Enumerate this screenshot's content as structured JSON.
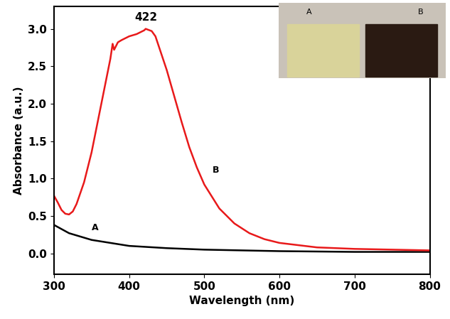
{
  "chart_data": {
    "type": "line",
    "x_label": "Wavelength (nm)",
    "y_label": "Absorbance (a.u.)",
    "xlim": [
      300,
      800
    ],
    "xticks": [
      300,
      400,
      500,
      600,
      700,
      800
    ],
    "ylim": [
      -0.28,
      3.3
    ],
    "yticks": [
      {
        "value": 0,
        "label": "0.0"
      },
      0.5,
      {
        "value": 1,
        "label": "1.0"
      },
      1.5,
      {
        "value": 2,
        "label": "2.0"
      },
      2.5,
      {
        "value": 3,
        "label": "3.0"
      }
    ],
    "grid": false,
    "series": [
      {
        "name": "A",
        "color": "#000000",
        "x": [
          300,
          320,
          350,
          400,
          450,
          500,
          600,
          700,
          800
        ],
        "values": [
          0.38,
          0.27,
          0.18,
          0.1,
          0.07,
          0.05,
          0.03,
          0.02,
          0.02
        ]
      },
      {
        "name": "B",
        "color": "#e8191a",
        "x": [
          300,
          305,
          310,
          315,
          320,
          325,
          330,
          340,
          350,
          360,
          370,
          375,
          378,
          380,
          385,
          390,
          400,
          410,
          420,
          422,
          430,
          435,
          440,
          450,
          460,
          470,
          480,
          490,
          500,
          520,
          540,
          560,
          580,
          600,
          650,
          700,
          750,
          800
        ],
        "values": [
          0.77,
          0.68,
          0.58,
          0.53,
          0.52,
          0.56,
          0.66,
          0.95,
          1.35,
          1.85,
          2.35,
          2.6,
          2.8,
          2.72,
          2.82,
          2.85,
          2.9,
          2.93,
          2.98,
          3.0,
          2.97,
          2.9,
          2.75,
          2.45,
          2.1,
          1.75,
          1.42,
          1.15,
          0.92,
          0.6,
          0.4,
          0.27,
          0.19,
          0.14,
          0.08,
          0.06,
          0.05,
          0.04
        ]
      }
    ],
    "annotations": [
      {
        "text": "422",
        "x": 422,
        "y": 3.0
      }
    ]
  }
}
